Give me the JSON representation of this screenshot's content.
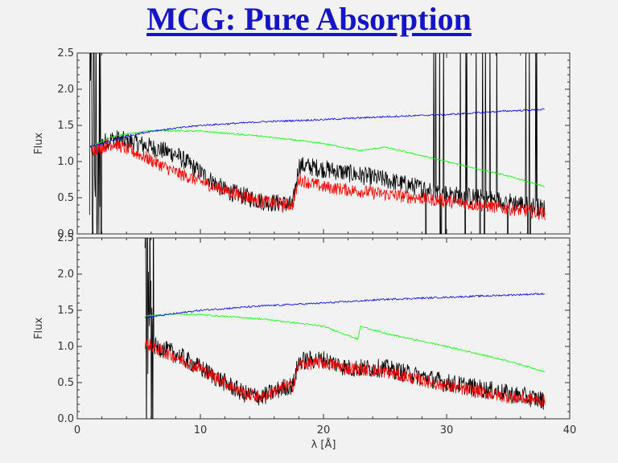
{
  "title": "MCG: Pure Absorption",
  "chart_data": [
    {
      "type": "line",
      "panel": "top",
      "xlim": [
        0,
        40
      ],
      "ylim": [
        0,
        2.5
      ],
      "xticks": [
        0,
        10,
        20,
        30,
        40
      ],
      "yticks": [
        "0.0",
        "0.5",
        "1.0",
        "1.5",
        "2.0",
        "2.5"
      ],
      "ylabel": "Flux",
      "xlabel": "",
      "series": [
        {
          "color": "#0000ff",
          "x": [
            1,
            4,
            6,
            10,
            15,
            20,
            25,
            30,
            35,
            38
          ],
          "y": [
            1.2,
            1.35,
            1.42,
            1.5,
            1.55,
            1.58,
            1.62,
            1.65,
            1.7,
            1.72
          ]
        },
        {
          "color": "#00ff00",
          "x": [
            1,
            3,
            6,
            10,
            15,
            20,
            23,
            25,
            30,
            35,
            38
          ],
          "y": [
            1.2,
            1.35,
            1.43,
            1.42,
            1.35,
            1.25,
            1.15,
            1.2,
            1.0,
            0.8,
            0.65
          ]
        },
        {
          "color": "#ff0000",
          "x": [
            1,
            3,
            5,
            8,
            12,
            15,
            17.5,
            18,
            20,
            25,
            30,
            35,
            38
          ],
          "y": [
            1.15,
            1.25,
            1.1,
            0.85,
            0.6,
            0.45,
            0.4,
            0.75,
            0.65,
            0.55,
            0.45,
            0.35,
            0.28
          ]
        },
        {
          "color": "#000000",
          "x": [
            1,
            3,
            5,
            8,
            12,
            15,
            17.5,
            18,
            20,
            25,
            30,
            35,
            38
          ],
          "y": [
            1.2,
            1.32,
            1.25,
            1.1,
            0.6,
            0.45,
            0.4,
            0.95,
            0.9,
            0.75,
            0.55,
            0.45,
            0.35
          ]
        }
      ]
    },
    {
      "type": "line",
      "panel": "bottom",
      "xlim": [
        0,
        40
      ],
      "ylim": [
        0,
        2.5
      ],
      "xticks": [
        0,
        10,
        20,
        30,
        40
      ],
      "yticks": [
        "0.0",
        "0.5",
        "1.0",
        "1.5",
        "2.0",
        "2.5"
      ],
      "ylabel": "Flux",
      "xlabel": "λ [Å]",
      "series": [
        {
          "color": "#0000ff",
          "x": [
            5.5,
            10,
            15,
            20,
            25,
            30,
            35,
            38
          ],
          "y": [
            1.4,
            1.5,
            1.56,
            1.6,
            1.65,
            1.68,
            1.71,
            1.73
          ]
        },
        {
          "color": "#00ff00",
          "x": [
            5.5,
            8,
            10,
            15,
            20,
            22.8,
            23,
            25,
            30,
            35,
            38
          ],
          "y": [
            1.42,
            1.45,
            1.44,
            1.38,
            1.28,
            1.1,
            1.28,
            1.18,
            1.0,
            0.8,
            0.65
          ]
        },
        {
          "color": "#ff0000",
          "x": [
            5.5,
            8,
            10,
            12,
            13.5,
            15,
            17,
            17.5,
            18,
            20,
            22,
            25,
            30,
            35,
            38
          ],
          "y": [
            1.05,
            0.85,
            0.7,
            0.5,
            0.35,
            0.3,
            0.45,
            0.45,
            0.75,
            0.78,
            0.7,
            0.65,
            0.45,
            0.3,
            0.25
          ]
        },
        {
          "color": "#000000",
          "x": [
            5.5,
            8,
            10,
            12,
            13.5,
            15,
            17,
            17.5,
            18,
            20,
            22,
            25,
            30,
            35,
            38
          ],
          "y": [
            1.05,
            0.9,
            0.7,
            0.5,
            0.35,
            0.3,
            0.45,
            0.45,
            0.8,
            0.82,
            0.7,
            0.7,
            0.5,
            0.35,
            0.25
          ]
        }
      ]
    }
  ]
}
